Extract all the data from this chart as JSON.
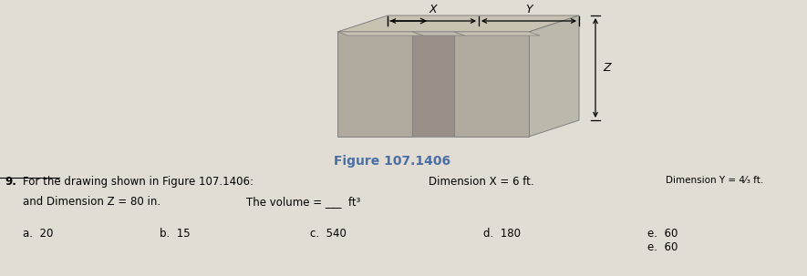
{
  "figure_label": "Figure 107.1406",
  "figure_label_color": "#4a6fa5",
  "question_number": "9.",
  "question_text": "For the drawing shown in Figure 107.1406:",
  "dim_x_text": "Dimension X = 6 ft.",
  "dim_y_text": "Dimension Y = 4⁄₃ ft.",
  "dim_z_text": "and Dimension Z = 80 in.",
  "volume_text": "The volume = ___  ft³",
  "choices": [
    "a.  20",
    "b.  15",
    "c.  540",
    "d.  180",
    "e.  60"
  ],
  "page_bg": "#e2ddd4",
  "top_color": "#c8c2b2",
  "front_color": "#b0aa9e",
  "right_color": "#bcb8ac",
  "channel_color": "#989088",
  "chan_top_color": "#c0bab0",
  "edge_color": "#808080"
}
